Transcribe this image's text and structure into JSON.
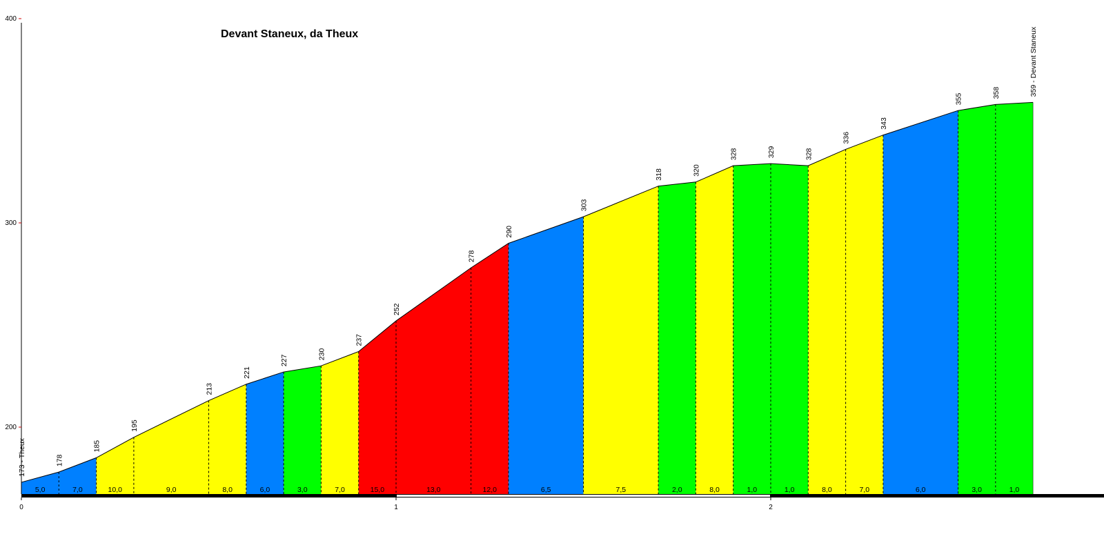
{
  "chart_data": {
    "type": "area",
    "title": "Devant Staneux, da Theux",
    "xlabel": "",
    "ylabel": "",
    "xlim": [
      0,
      2.8
    ],
    "ylim": [
      164,
      400
    ],
    "y_ticks": [
      200,
      300,
      400
    ],
    "x_ticks": [
      0,
      1,
      2
    ],
    "points": [
      {
        "x": 0.0,
        "y": 173,
        "label": "173 - Theux"
      },
      {
        "x": 0.1,
        "y": 178,
        "label": "178"
      },
      {
        "x": 0.2,
        "y": 185,
        "label": "185"
      },
      {
        "x": 0.3,
        "y": 195,
        "label": "195"
      },
      {
        "x": 0.5,
        "y": 213,
        "label": "213"
      },
      {
        "x": 0.6,
        "y": 221,
        "label": "221"
      },
      {
        "x": 0.7,
        "y": 227,
        "label": "227"
      },
      {
        "x": 0.8,
        "y": 230,
        "label": "230"
      },
      {
        "x": 0.9,
        "y": 237,
        "label": "237"
      },
      {
        "x": 1.0,
        "y": 252,
        "label": "252"
      },
      {
        "x": 1.2,
        "y": 278,
        "label": "278"
      },
      {
        "x": 1.3,
        "y": 290,
        "label": "290"
      },
      {
        "x": 1.5,
        "y": 303,
        "label": "303"
      },
      {
        "x": 1.7,
        "y": 318,
        "label": "318"
      },
      {
        "x": 1.8,
        "y": 320,
        "label": "320"
      },
      {
        "x": 1.9,
        "y": 328,
        "label": "328"
      },
      {
        "x": 2.0,
        "y": 329,
        "label": "329"
      },
      {
        "x": 2.1,
        "y": 328,
        "label": "328"
      },
      {
        "x": 2.2,
        "y": 336,
        "label": "336"
      },
      {
        "x": 2.3,
        "y": 343,
        "label": "343"
      },
      {
        "x": 2.5,
        "y": 355,
        "label": "355"
      },
      {
        "x": 2.6,
        "y": 358,
        "label": "358"
      },
      {
        "x": 2.7,
        "y": 359,
        "label": "359 - Devant Staneux"
      }
    ],
    "segments": [
      {
        "grade": "5,0",
        "color": "#0080ff"
      },
      {
        "grade": "7,0",
        "color": "#0080ff"
      },
      {
        "grade": "10,0",
        "color": "#ffff00"
      },
      {
        "grade": "9,0",
        "color": "#ffff00"
      },
      {
        "grade": "8,0",
        "color": "#ffff00"
      },
      {
        "grade": "6,0",
        "color": "#0080ff"
      },
      {
        "grade": "3,0",
        "color": "#00ff00"
      },
      {
        "grade": "7,0",
        "color": "#ffff00"
      },
      {
        "grade": "15,0",
        "color": "#ff0000"
      },
      {
        "grade": "13,0",
        "color": "#ff0000"
      },
      {
        "grade": "12,0",
        "color": "#ff0000"
      },
      {
        "grade": "6,5",
        "color": "#0080ff"
      },
      {
        "grade": "7,5",
        "color": "#ffff00"
      },
      {
        "grade": "2,0",
        "color": "#00ff00"
      },
      {
        "grade": "8,0",
        "color": "#ffff00"
      },
      {
        "grade": "1,0",
        "color": "#00ff00"
      },
      {
        "grade": "1,0",
        "color": "#00ff00"
      },
      {
        "grade": "8,0",
        "color": "#ffff00"
      },
      {
        "grade": "7,0",
        "color": "#ffff00"
      },
      {
        "grade": "6,0",
        "color": "#0080ff"
      },
      {
        "grade": "3,0",
        "color": "#00ff00"
      },
      {
        "grade": "1,0",
        "color": "#00ff00"
      }
    ],
    "grid": false,
    "legend": "none"
  }
}
